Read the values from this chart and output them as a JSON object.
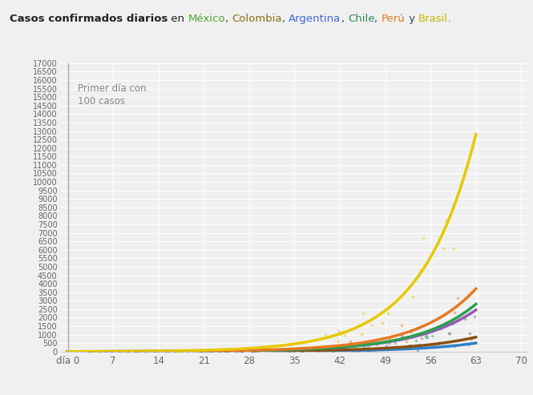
{
  "title_bold": "Casos confirmados diarios",
  "title_normal": " en ",
  "countries": [
    "México",
    "Colombia",
    "Argentina",
    "Chile",
    "Perú",
    "Brasil"
  ],
  "country_colors_title": [
    "#4ea832",
    "#8B6914",
    "#4169e1",
    "#2e8b57",
    "#e87722",
    "#c8b400"
  ],
  "country_colors_plot": [
    "#3080c8",
    "#8B5010",
    "#9b59b6",
    "#28a050",
    "#e87722",
    "#e8c800"
  ],
  "annotation": "Primer día con\n100 casos",
  "xticks": [
    0,
    7,
    14,
    21,
    28,
    35,
    42,
    49,
    56,
    63,
    70
  ],
  "xlim": [
    -1,
    71
  ],
  "ylim": [
    0,
    17000
  ],
  "background_color": "#f0f0f0",
  "grid_color": "#ffffff",
  "end_vals": [
    500,
    850,
    2450,
    2800,
    3700,
    12800
  ],
  "k_vals": [
    7.0,
    6.5,
    6.8,
    7.2,
    7.0,
    7.5
  ],
  "n_days": 63
}
